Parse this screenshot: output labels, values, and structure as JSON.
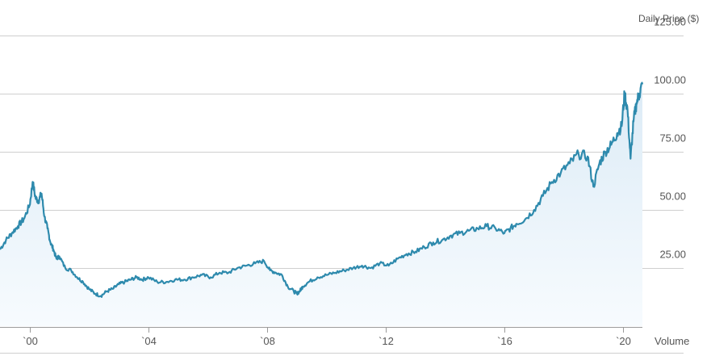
{
  "chart_data": {
    "type": "area",
    "ylabel": "Daily Price ($)",
    "secondary_label": "Volume",
    "ylim": [
      0,
      125
    ],
    "yticks": [
      25,
      50,
      75,
      100,
      125
    ],
    "ytick_labels": [
      "25.00",
      "50.00",
      "75.00",
      "100.00",
      "125.00"
    ],
    "xlim": [
      1999.0,
      2020.65
    ],
    "xticks": [
      2000,
      2004,
      2008,
      2012,
      2016,
      2020
    ],
    "xtick_labels": [
      "`00",
      "`04",
      "`08",
      "`12",
      "`16",
      "`20"
    ],
    "grid": true,
    "colors": {
      "line": "#2e8aad",
      "fill_top": "#dcebf6",
      "fill_bottom": "#f7fbfe",
      "grid": "#cfcfcf",
      "axis": "#9a9a9a"
    },
    "series": [
      {
        "x": [
          1999.0,
          1999.2,
          1999.4,
          1999.6,
          1999.8,
          2000.0,
          2000.1,
          2000.2,
          2000.3,
          2000.4,
          2000.5,
          2000.6,
          2000.7,
          2000.8,
          2000.9,
          2001.0,
          2001.2,
          2001.4,
          2001.6,
          2001.8,
          2002.0,
          2002.2,
          2002.4,
          2002.6,
          2002.8,
          2003.0,
          2003.2,
          2003.4,
          2003.6,
          2003.8,
          2004.0,
          2004.3,
          2004.6,
          2004.9,
          2005.2,
          2005.5,
          2005.8,
          2006.1,
          2006.4,
          2006.7,
          2007.0,
          2007.3,
          2007.6,
          2007.9,
          2008.1,
          2008.3,
          2008.5,
          2008.7,
          2008.9,
          2009.0,
          2009.1,
          2009.2,
          2009.4,
          2009.7,
          2010.0,
          2010.3,
          2010.6,
          2010.9,
          2011.2,
          2011.5,
          2011.8,
          2012.1,
          2012.4,
          2012.7,
          2013.0,
          2013.3,
          2013.6,
          2013.9,
          2014.2,
          2014.5,
          2014.8,
          2015.1,
          2015.4,
          2015.7,
          2016.0,
          2016.2,
          2016.4,
          2016.7,
          2017.0,
          2017.3,
          2017.6,
          2017.9,
          2018.2,
          2018.5,
          2018.8,
          2019.0,
          2019.2,
          2019.4,
          2019.6,
          2019.8,
          2019.95,
          2020.05,
          2020.15,
          2020.25,
          2020.35,
          2020.45,
          2020.55,
          2020.65
        ],
        "y": [
          33,
          37,
          40,
          43,
          46,
          52,
          62,
          55,
          54,
          57,
          47,
          42,
          36,
          33,
          29,
          30,
          25,
          24,
          21,
          19,
          16,
          14,
          13,
          15,
          16,
          18,
          19,
          20,
          21,
          20,
          21,
          19,
          19,
          20,
          20,
          21,
          22,
          21,
          23,
          23,
          25,
          26,
          27,
          28,
          24,
          23,
          22,
          17,
          15,
          14,
          15,
          17,
          19,
          21,
          22,
          23,
          24,
          25,
          26,
          25,
          27,
          26,
          29,
          31,
          32,
          34,
          36,
          37,
          39,
          40,
          41,
          42,
          43,
          42,
          40,
          42,
          44,
          46,
          50,
          56,
          62,
          66,
          70,
          74,
          73,
          60,
          70,
          75,
          78,
          83,
          86,
          100,
          93,
          72,
          88,
          96,
          100,
          104
        ]
      }
    ]
  }
}
